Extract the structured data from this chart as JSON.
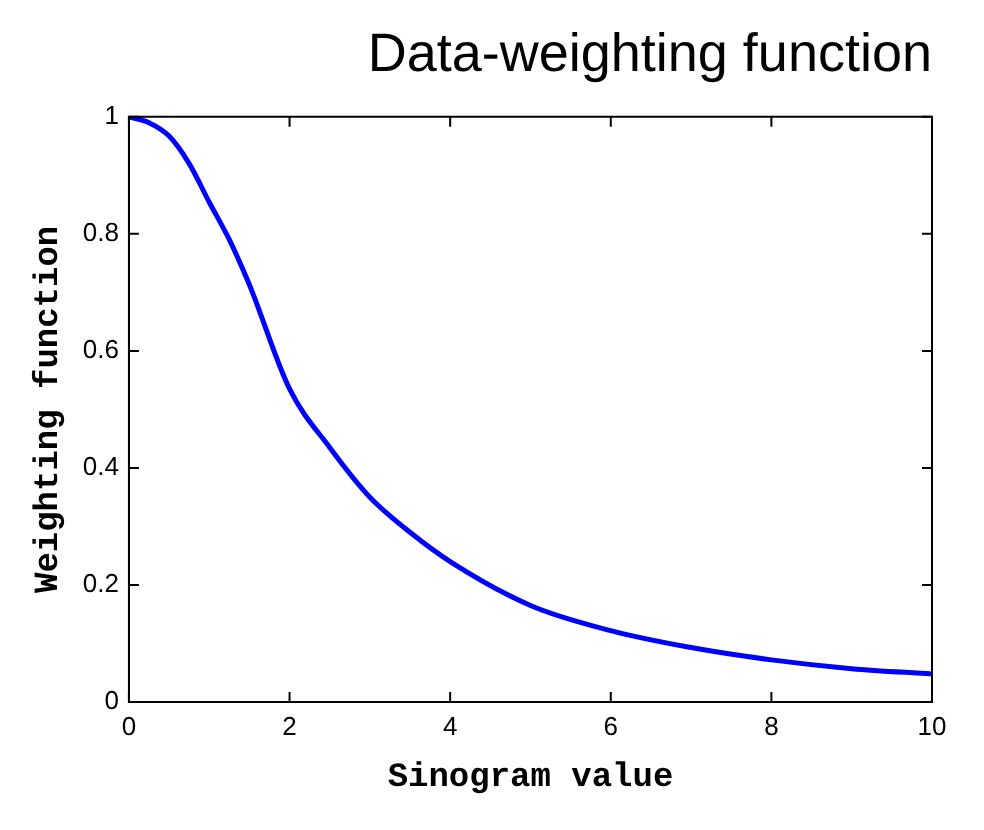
{
  "chart_data": {
    "type": "line",
    "title": "Data-weighting function",
    "xlabel": "Sinogram value",
    "ylabel": "Weighting function",
    "x": [
      0,
      0.25,
      0.5,
      0.75,
      1,
      1.25,
      1.5,
      2,
      2.5,
      3,
      3.5,
      4,
      5,
      6,
      7,
      8,
      9,
      10
    ],
    "series": [
      {
        "color": "#0000ff",
        "values": [
          1,
          0.99,
          0.967,
          0.92,
          0.854,
          0.79,
          0.713,
          0.535,
          0.435,
          0.35,
          0.29,
          0.24,
          0.165,
          0.122,
          0.093,
          0.072,
          0.057,
          0.048
        ]
      }
    ],
    "xlim": [
      0,
      10
    ],
    "xticks": [
      0,
      2,
      4,
      6,
      8,
      10
    ],
    "ylim": [
      0,
      1
    ],
    "yticks": [
      0,
      0.2,
      0.4,
      0.6,
      0.8,
      1
    ],
    "grid": false,
    "legend": false,
    "marker": "none",
    "line_style": "solid"
  }
}
